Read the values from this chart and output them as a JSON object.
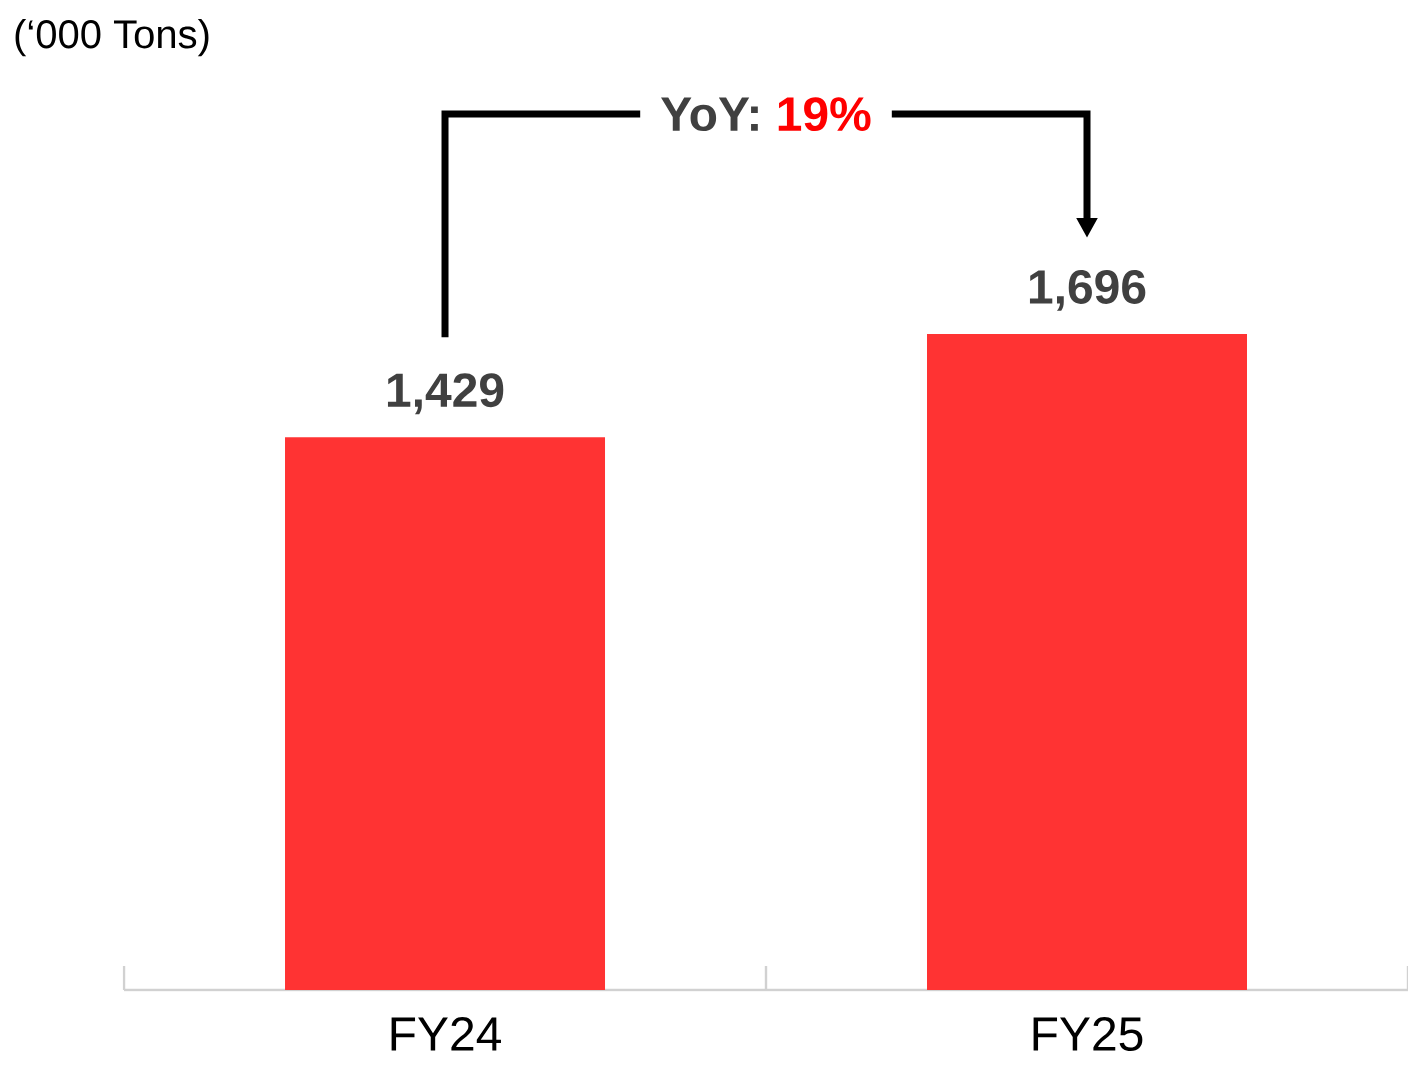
{
  "chart_data": {
    "type": "bar",
    "subtitle": "(‘000 Tons)",
    "categories": [
      "FY24",
      "FY25"
    ],
    "values": [
      1429,
      1696
    ],
    "value_labels": [
      "1,429",
      "1,696"
    ],
    "color": "#ff3333",
    "annotations": [
      "YoY:",
      "19%"
    ]
  }
}
